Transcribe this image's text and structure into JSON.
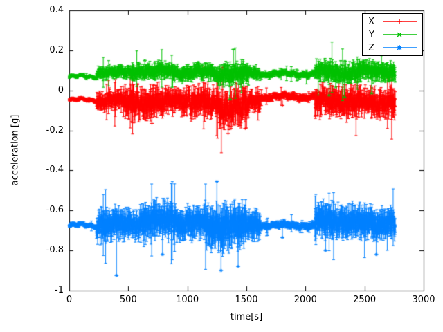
{
  "chart_data": {
    "type": "line",
    "title": "",
    "xlabel": "time[s]",
    "ylabel": "acceleration [g]",
    "xlim": [
      0,
      3000
    ],
    "ylim": [
      -1,
      0.4
    ],
    "xticks": [
      0,
      500,
      1000,
      1500,
      2000,
      2500,
      3000
    ],
    "xtick_labels": [
      "0",
      "500",
      "1000",
      "1500",
      "2000",
      "2500",
      "3000"
    ],
    "yticks": [
      -1,
      -0.8,
      -0.6,
      -0.4,
      -0.2,
      0,
      0.2,
      0.4
    ],
    "ytick_labels": [
      "-1",
      "-0.8",
      "-0.6",
      "-0.4",
      "-0.2",
      "0",
      "0.2",
      "0.4"
    ],
    "grid": false,
    "legend": {
      "position": "top-right-inside",
      "box": true
    },
    "time_range_s": [
      0,
      2760
    ],
    "sample_step_s": 2,
    "segments_format": "[t_start, t_end, mean_g, noise_amplitude_g]",
    "spikes_format": "[t, value_g]",
    "series": [
      {
        "name": "X",
        "color": "#ff0000",
        "marker": "plus",
        "style": "errorbars",
        "baseline_g": -0.05,
        "segments": [
          [
            0,
            230,
            -0.048,
            0.006
          ],
          [
            230,
            460,
            -0.05,
            0.03
          ],
          [
            460,
            800,
            -0.06,
            0.05
          ],
          [
            800,
            1020,
            -0.05,
            0.04
          ],
          [
            1020,
            1260,
            -0.06,
            0.05
          ],
          [
            1260,
            1520,
            -0.08,
            0.06
          ],
          [
            1520,
            1620,
            -0.05,
            0.035
          ],
          [
            1620,
            2080,
            -0.032,
            0.012
          ],
          [
            2080,
            2470,
            -0.055,
            0.05
          ],
          [
            2470,
            2760,
            -0.06,
            0.045
          ]
        ],
        "spikes": [
          [
            700,
            -0.165
          ],
          [
            1300,
            0.115
          ],
          [
            1345,
            -0.215
          ],
          [
            1490,
            -0.19
          ],
          [
            1805,
            -0.075
          ],
          [
            2380,
            -0.12
          ],
          [
            2650,
            -0.1
          ]
        ]
      },
      {
        "name": "Y",
        "color": "#00c000",
        "marker": "cross",
        "style": "errorbars",
        "baseline_g": 0.08,
        "segments": [
          [
            0,
            230,
            0.068,
            0.005
          ],
          [
            230,
            520,
            0.09,
            0.02
          ],
          [
            520,
            900,
            0.095,
            0.025
          ],
          [
            900,
            1250,
            0.09,
            0.025
          ],
          [
            1250,
            1520,
            0.08,
            0.035
          ],
          [
            1520,
            1620,
            0.09,
            0.02
          ],
          [
            1620,
            2080,
            0.082,
            0.01
          ],
          [
            2080,
            2470,
            0.09,
            0.035
          ],
          [
            2470,
            2760,
            0.095,
            0.03
          ]
        ],
        "spikes": [
          [
            640,
            0.15
          ],
          [
            1360,
            -0.045
          ],
          [
            1390,
            0.205
          ],
          [
            2200,
            -0.025
          ],
          [
            2330,
            -0.035
          ],
          [
            2560,
            -0.015
          ]
        ]
      },
      {
        "name": "Z",
        "color": "#0080ff",
        "marker": "asterisk",
        "style": "errorbars",
        "baseline_g": -0.67,
        "segments": [
          [
            0,
            230,
            -0.675,
            0.007
          ],
          [
            230,
            600,
            -0.67,
            0.05
          ],
          [
            600,
            900,
            -0.65,
            0.06
          ],
          [
            900,
            1150,
            -0.665,
            0.05
          ],
          [
            1150,
            1500,
            -0.68,
            0.07
          ],
          [
            1500,
            1620,
            -0.67,
            0.045
          ],
          [
            1620,
            2080,
            -0.675,
            0.012
          ],
          [
            2080,
            2420,
            -0.655,
            0.055
          ],
          [
            2420,
            2760,
            -0.665,
            0.05
          ]
        ],
        "spikes": [
          [
            400,
            -0.925
          ],
          [
            790,
            -0.82
          ],
          [
            1250,
            -0.455
          ],
          [
            1285,
            -0.9
          ],
          [
            1430,
            -0.88
          ],
          [
            1805,
            -0.735
          ],
          [
            2170,
            -0.8
          ],
          [
            2600,
            -0.82
          ]
        ]
      }
    ]
  }
}
